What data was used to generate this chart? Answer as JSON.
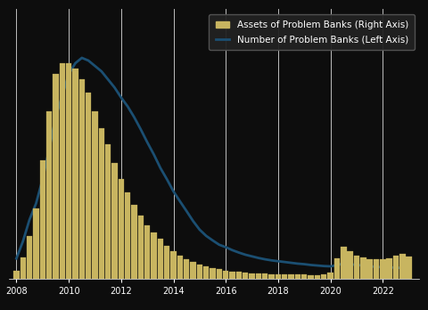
{
  "background_color": "#0d0d0d",
  "bar_color": "#c8b560",
  "bar_edge_color": "#c8b560",
  "line_color": "#1b4f72",
  "grid_color": "#ffffff",
  "text_color": "#ffffff",
  "years": [
    2008.0,
    2008.25,
    2008.5,
    2008.75,
    2009.0,
    2009.25,
    2009.5,
    2009.75,
    2010.0,
    2010.25,
    2010.5,
    2010.75,
    2011.0,
    2011.25,
    2011.5,
    2011.75,
    2012.0,
    2012.25,
    2012.5,
    2012.75,
    2013.0,
    2013.25,
    2013.5,
    2013.75,
    2014.0,
    2014.25,
    2014.5,
    2014.75,
    2015.0,
    2015.25,
    2015.5,
    2015.75,
    2016.0,
    2016.25,
    2016.5,
    2016.75,
    2017.0,
    2017.25,
    2017.5,
    2017.75,
    2018.0,
    2018.25,
    2018.5,
    2018.75,
    2019.0,
    2019.25,
    2019.5,
    2019.75,
    2020.0,
    2020.25,
    2020.5,
    2020.75,
    2021.0,
    2021.25,
    2021.5,
    2021.75,
    2022.0,
    2022.25,
    2022.5,
    2022.75,
    2023.0
  ],
  "assets_billions": [
    15,
    40,
    80,
    130,
    220,
    310,
    380,
    400,
    400,
    390,
    370,
    345,
    310,
    280,
    250,
    215,
    185,
    160,
    138,
    118,
    100,
    86,
    74,
    62,
    52,
    44,
    37,
    31,
    27,
    23,
    20,
    18,
    16,
    14,
    13,
    12,
    11,
    10,
    10,
    9,
    9,
    9,
    8,
    8,
    8,
    7,
    7,
    8,
    12,
    38,
    60,
    52,
    44,
    40,
    37,
    36,
    37,
    39,
    43,
    46,
    42
  ],
  "num_banks": [
    76,
    140,
    220,
    280,
    370,
    480,
    600,
    680,
    760,
    800,
    820,
    810,
    790,
    770,
    740,
    710,
    673,
    640,
    600,
    555,
    507,
    462,
    412,
    370,
    325,
    288,
    252,
    215,
    183,
    160,
    143,
    127,
    118,
    107,
    98,
    90,
    84,
    78,
    73,
    69,
    66,
    63,
    60,
    57,
    55,
    52,
    50,
    48,
    47,
    51,
    58,
    55,
    52,
    50,
    47,
    45,
    44,
    43,
    42,
    41,
    40
  ],
  "xtick_years": [
    2008,
    2010,
    2012,
    2014,
    2016,
    2018,
    2020,
    2022
  ],
  "left_ylim": [
    0,
    1000
  ],
  "right_ylim": [
    0,
    500
  ],
  "left_yticks": [],
  "right_yticks": [],
  "xlim": [
    2007.7,
    2023.4
  ],
  "bar_width": 0.22,
  "legend_facecolor": "#222222",
  "legend_edgecolor": "#555555",
  "legend_fontsize": 7.5,
  "grid_linewidth": 0.6,
  "grid_alpha": 0.85,
  "line_linewidth": 2.0
}
